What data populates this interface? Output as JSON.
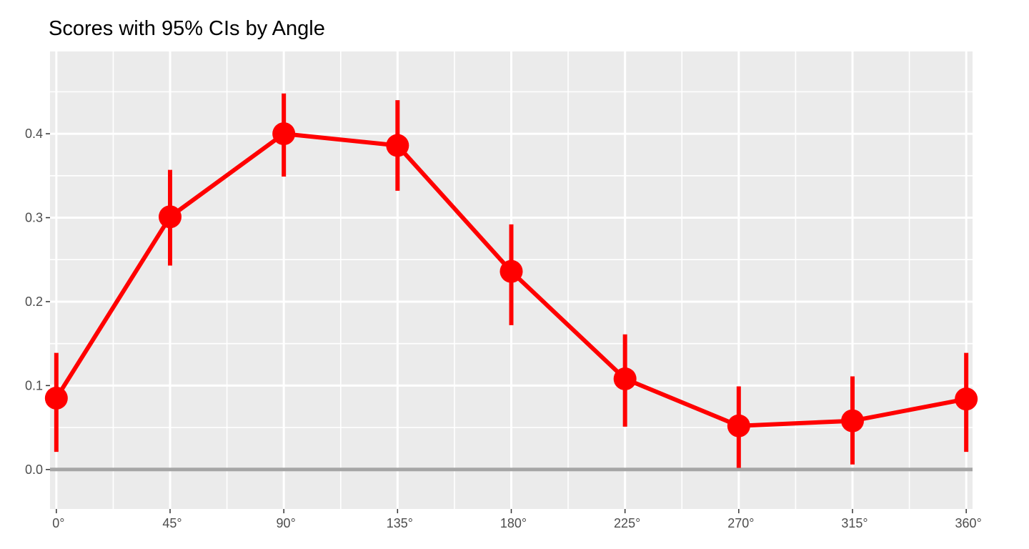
{
  "chart_data": {
    "type": "line",
    "title": "Scores with 95% CIs by Angle",
    "xlabel": "",
    "ylabel": "",
    "x": [
      0,
      45,
      90,
      135,
      180,
      225,
      270,
      315,
      360
    ],
    "x_tick_values": [
      0,
      45,
      90,
      135,
      180,
      225,
      270,
      315,
      360
    ],
    "x_tick_labels": [
      "0°",
      "45°",
      "90°",
      "135°",
      "180°",
      "225°",
      "270°",
      "315°",
      "360°"
    ],
    "y_tick_values": [
      0.0,
      0.1,
      0.2,
      0.3,
      0.4
    ],
    "y_tick_labels": [
      "0.0",
      "0.1",
      "0.2",
      "0.3",
      "0.4"
    ],
    "xlim": [
      -2.5,
      362.5
    ],
    "ylim": [
      -0.047,
      0.498
    ],
    "grid": true,
    "reference_line_y": 0,
    "series": [
      {
        "values": [
          0.085,
          0.301,
          0.4,
          0.386,
          0.236,
          0.108,
          0.052,
          0.058,
          0.084
        ],
        "ci_lower": [
          0.021,
          0.243,
          0.349,
          0.332,
          0.172,
          0.051,
          0.002,
          0.006,
          0.021
        ],
        "ci_upper": [
          0.139,
          0.357,
          0.448,
          0.44,
          0.292,
          0.161,
          0.099,
          0.111,
          0.139
        ],
        "color": "#ff0000"
      }
    ],
    "colors": {
      "panel": "#ebebeb",
      "grid": "#ffffff",
      "reference_line": "#a6a6a6",
      "series": "#ff0000"
    }
  }
}
